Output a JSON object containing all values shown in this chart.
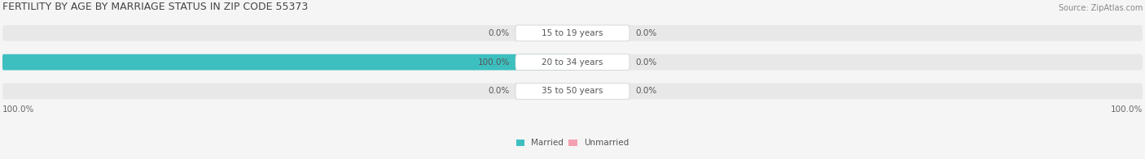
{
  "title": "FERTILITY BY AGE BY MARRIAGE STATUS IN ZIP CODE 55373",
  "source": "Source: ZipAtlas.com",
  "rows": [
    {
      "label": "15 to 19 years",
      "married": 0.0,
      "unmarried": 0.0
    },
    {
      "label": "20 to 34 years",
      "married": 100.0,
      "unmarried": 0.0
    },
    {
      "label": "35 to 50 years",
      "married": 0.0,
      "unmarried": 0.0
    }
  ],
  "married_color": "#3dbfbf",
  "unmarried_color": "#f4a0b0",
  "bar_bg_color": "#e8e8e8",
  "label_bg_color": "#ffffff",
  "bar_height": 0.55,
  "xlim": [
    -100,
    100
  ],
  "left_axis_label": "100.0%",
  "right_axis_label": "100.0%",
  "legend_married": "Married",
  "legend_unmarried": "Unmarried",
  "title_fontsize": 9,
  "source_fontsize": 7,
  "tick_fontsize": 7.5,
  "label_fontsize": 7.5,
  "value_fontsize": 7.5
}
